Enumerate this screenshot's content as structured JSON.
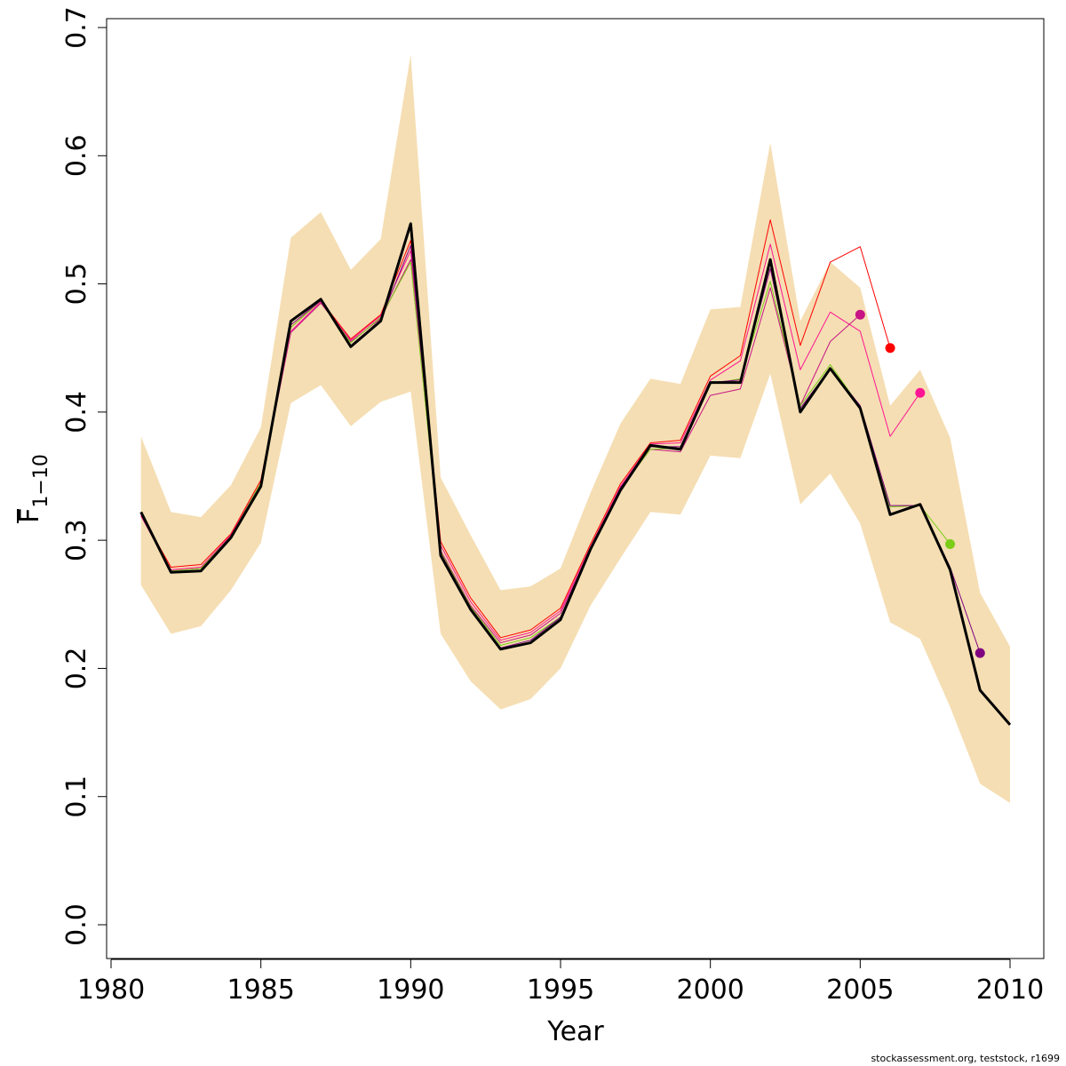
{
  "chart_data": {
    "type": "line",
    "xlabel": "Year",
    "ylabel": {
      "main": "F",
      "subscript": "1−10",
      "overline": true
    },
    "xlim": [
      1981,
      2010
    ],
    "ylim": [
      0,
      0.7
    ],
    "x_ticks": [
      1980,
      1985,
      1990,
      1995,
      2000,
      2005,
      2010
    ],
    "x_tick_labels": [
      "1980",
      "1985",
      "1990",
      "1995",
      "2000",
      "2005",
      "2010"
    ],
    "y_ticks": [
      0,
      0.1,
      0.2,
      0.3,
      0.4,
      0.5,
      0.6,
      0.7
    ],
    "y_tick_labels": [
      "0.0",
      "0.1",
      "0.2",
      "0.3",
      "0.4",
      "0.5",
      "0.6",
      "0.7"
    ],
    "grid": false,
    "legend": "none",
    "footer_text": "stockassessment.org, teststock, r1699",
    "band": {
      "color": "#F5DEB3",
      "x": [
        1981,
        1982,
        1983,
        1984,
        1985,
        1986,
        1987,
        1988,
        1989,
        1990,
        1991,
        1992,
        1993,
        1994,
        1995,
        1996,
        1997,
        1998,
        1999,
        2000,
        2001,
        2002,
        2003,
        2004,
        2005,
        2006,
        2007,
        2008,
        2009,
        2010
      ],
      "lower": [
        0.265,
        0.227,
        0.233,
        0.261,
        0.298,
        0.407,
        0.421,
        0.389,
        0.408,
        0.416,
        0.227,
        0.19,
        0.168,
        0.176,
        0.2,
        0.249,
        0.286,
        0.322,
        0.32,
        0.366,
        0.364,
        0.43,
        0.328,
        0.352,
        0.313,
        0.236,
        0.223,
        0.17,
        0.11,
        0.095
      ],
      "upper": [
        0.381,
        0.322,
        0.318,
        0.343,
        0.388,
        0.536,
        0.556,
        0.511,
        0.535,
        0.679,
        0.349,
        0.304,
        0.261,
        0.264,
        0.278,
        0.337,
        0.391,
        0.426,
        0.422,
        0.48,
        0.482,
        0.61,
        0.471,
        0.517,
        0.497,
        0.405,
        0.433,
        0.38,
        0.259,
        0.217
      ]
    },
    "series": [
      {
        "color": "#FF0000",
        "width": 1,
        "x": [
          1981,
          1982,
          1983,
          1984,
          1985,
          1986,
          1987,
          1988,
          1989,
          1990,
          1991,
          1992,
          1993,
          1994,
          1995,
          1996,
          1997,
          1998,
          1999,
          2000,
          2001,
          2002,
          2003,
          2004,
          2005,
          2006
        ],
        "values": [
          0.32,
          0.279,
          0.281,
          0.305,
          0.347,
          0.466,
          0.487,
          0.457,
          0.476,
          0.534,
          0.299,
          0.255,
          0.224,
          0.23,
          0.247,
          0.297,
          0.344,
          0.376,
          0.378,
          0.428,
          0.444,
          0.55,
          0.452,
          0.517,
          0.529,
          0.45
        ],
        "endpoint": true
      },
      {
        "color": "#FF1493",
        "width": 1,
        "x": [
          1981,
          1982,
          1983,
          1984,
          1985,
          1986,
          1987,
          1988,
          1989,
          1990,
          1991,
          1992,
          1993,
          1994,
          1995,
          1996,
          1997,
          1998,
          1999,
          2000,
          2001,
          2002,
          2003,
          2004,
          2005,
          2006,
          2007
        ],
        "values": [
          0.319,
          0.277,
          0.279,
          0.304,
          0.345,
          0.463,
          0.486,
          0.456,
          0.475,
          0.526,
          0.296,
          0.252,
          0.222,
          0.228,
          0.245,
          0.295,
          0.342,
          0.375,
          0.376,
          0.425,
          0.44,
          0.531,
          0.433,
          0.478,
          0.463,
          0.381,
          0.415
        ],
        "endpoint": true
      },
      {
        "color": "#C71585",
        "width": 1,
        "x": [
          1981,
          1982,
          1983,
          1984,
          1985,
          1986,
          1987,
          1988,
          1989,
          1990,
          1991,
          1992,
          1993,
          1994,
          1995,
          1996,
          1997,
          1998,
          1999,
          2000,
          2001,
          2002,
          2003,
          2004,
          2005
        ],
        "values": [
          0.319,
          0.276,
          0.278,
          0.303,
          0.344,
          0.462,
          0.485,
          0.455,
          0.473,
          0.519,
          0.292,
          0.249,
          0.22,
          0.226,
          0.243,
          0.293,
          0.34,
          0.371,
          0.369,
          0.413,
          0.418,
          0.497,
          0.405,
          0.455,
          0.476
        ],
        "endpoint": true
      },
      {
        "color": "#7CCD1A",
        "width": 1,
        "x": [
          1981,
          1982,
          1983,
          1984,
          1985,
          1986,
          1987,
          1988,
          1989,
          1990,
          1991,
          1992,
          1993,
          1994,
          1995,
          1996,
          1997,
          1998,
          1999,
          2000,
          2001,
          2002,
          2003,
          2004,
          2005,
          2006,
          2007,
          2008
        ],
        "values": [
          0.321,
          0.276,
          0.278,
          0.303,
          0.345,
          0.466,
          0.487,
          0.454,
          0.474,
          0.517,
          0.291,
          0.248,
          0.218,
          0.224,
          0.24,
          0.292,
          0.34,
          0.371,
          0.372,
          0.422,
          0.426,
          0.502,
          0.405,
          0.437,
          0.404,
          0.326,
          0.327,
          0.297
        ],
        "endpoint": true
      },
      {
        "color": "#800080",
        "width": 1,
        "x": [
          1981,
          1982,
          1983,
          1984,
          1985,
          1986,
          1987,
          1988,
          1989,
          1990,
          1991,
          1992,
          1993,
          1994,
          1995,
          1996,
          1997,
          1998,
          1999,
          2000,
          2001,
          2002,
          2003,
          2004,
          2005,
          2006,
          2007,
          2008,
          2009
        ],
        "values": [
          0.321,
          0.275,
          0.276,
          0.302,
          0.343,
          0.468,
          0.487,
          0.452,
          0.472,
          0.53,
          0.29,
          0.247,
          0.216,
          0.222,
          0.24,
          0.293,
          0.341,
          0.373,
          0.373,
          0.423,
          0.425,
          0.512,
          0.403,
          0.434,
          0.405,
          0.327,
          0.327,
          0.279,
          0.212
        ],
        "endpoint": true
      },
      {
        "color": "#000000",
        "width": 3,
        "x": [
          1981,
          1982,
          1983,
          1984,
          1985,
          1986,
          1987,
          1988,
          1989,
          1990,
          1991,
          1992,
          1993,
          1994,
          1995,
          1996,
          1997,
          1998,
          1999,
          2000,
          2001,
          2002,
          2003,
          2004,
          2005,
          2006,
          2007,
          2008,
          2009,
          2010
        ],
        "values": [
          0.322,
          0.275,
          0.276,
          0.302,
          0.342,
          0.471,
          0.488,
          0.451,
          0.471,
          0.547,
          0.288,
          0.246,
          0.215,
          0.22,
          0.238,
          0.293,
          0.339,
          0.374,
          0.371,
          0.423,
          0.423,
          0.519,
          0.4,
          0.434,
          0.403,
          0.32,
          0.328,
          0.277,
          0.183,
          0.156
        ],
        "endpoint": false
      }
    ]
  }
}
